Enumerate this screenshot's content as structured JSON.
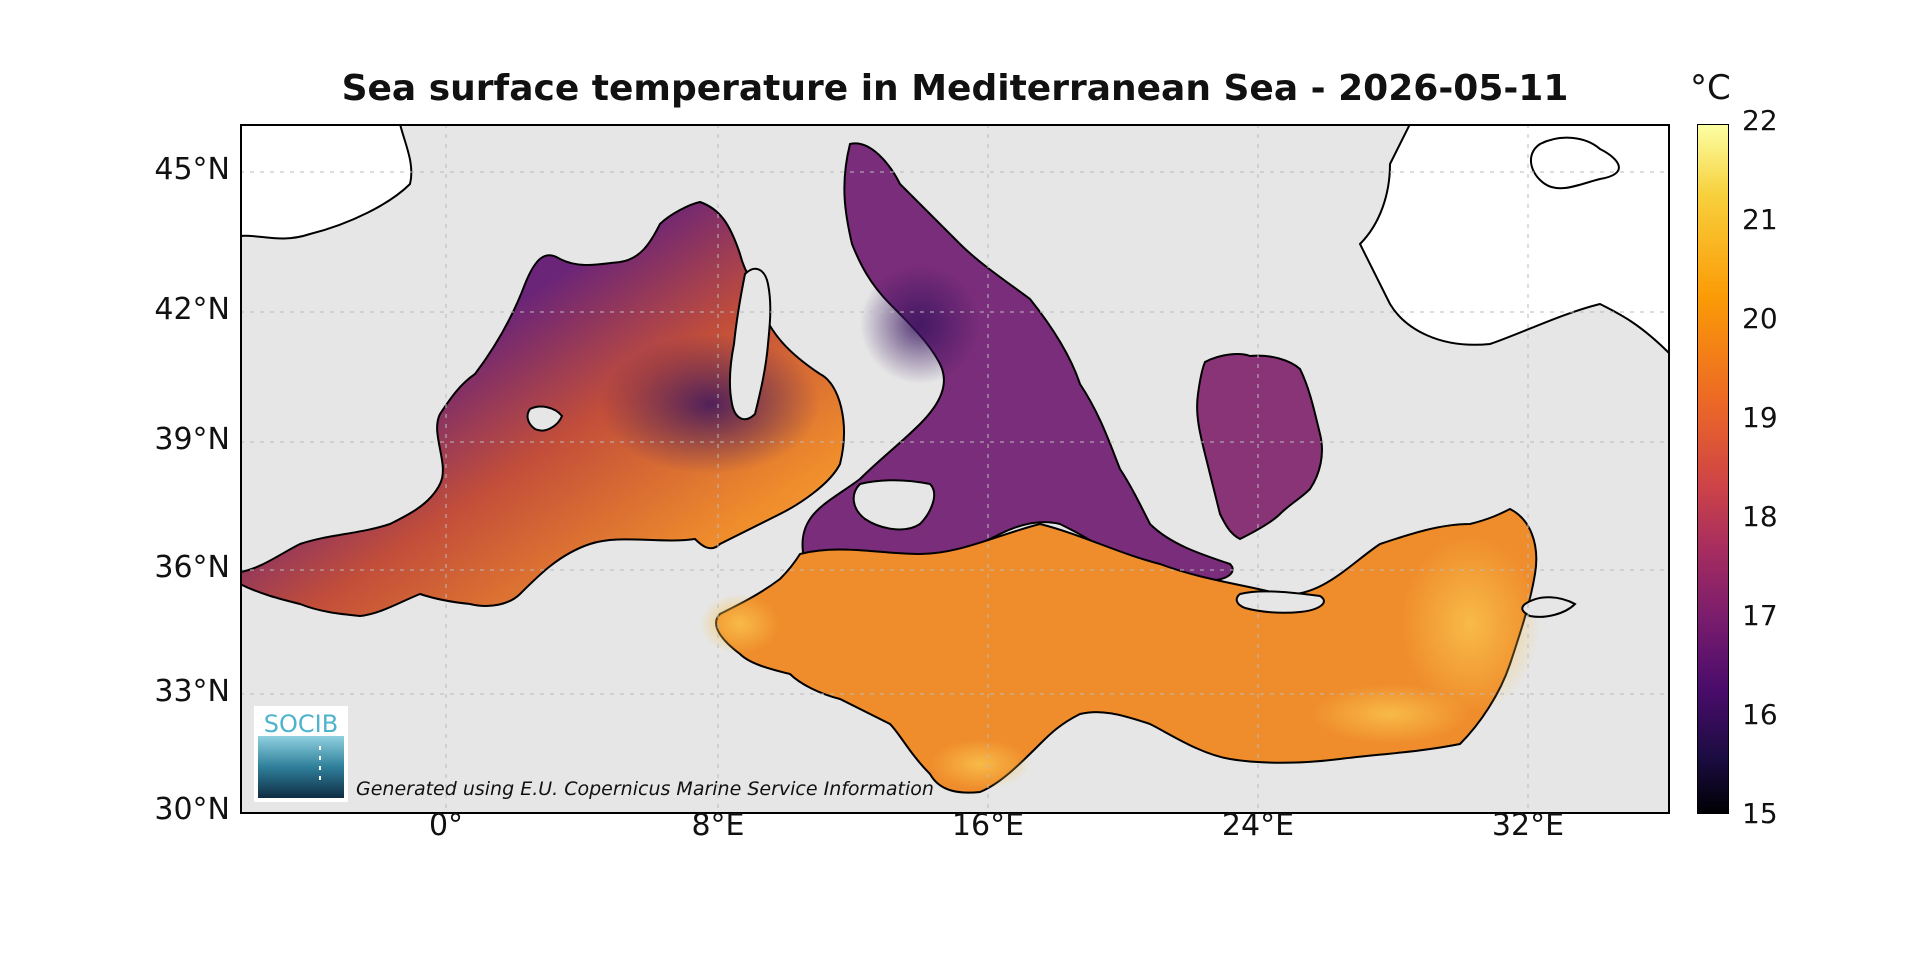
{
  "title": "Sea surface temperature in Mediterranean Sea - 2026-05-11",
  "colors": {
    "land": "#e6e6e6",
    "outside": "#ffffff",
    "coast": "#000000",
    "sea_warm": "#f39a2a",
    "sea_mid": "#c14a3a",
    "sea_cool": "#6c2678",
    "sea_cold": "#3a1560"
  },
  "lat_ticks": [
    "45°N",
    "42°N",
    "39°N",
    "36°N",
    "33°N",
    "30°N"
  ],
  "lon_ticks": [
    "0°",
    "8°E",
    "16°E",
    "24°E",
    "32°E"
  ],
  "colorbar": {
    "unit": "°C",
    "min": 15,
    "max": 22,
    "ticks": [
      "22",
      "21",
      "20",
      "19",
      "18",
      "17",
      "16",
      "15"
    ],
    "colormap": "inferno"
  },
  "logo": {
    "text": "SOCIB"
  },
  "attribution": "Generated using E.U. Copernicus Marine Service Information"
}
